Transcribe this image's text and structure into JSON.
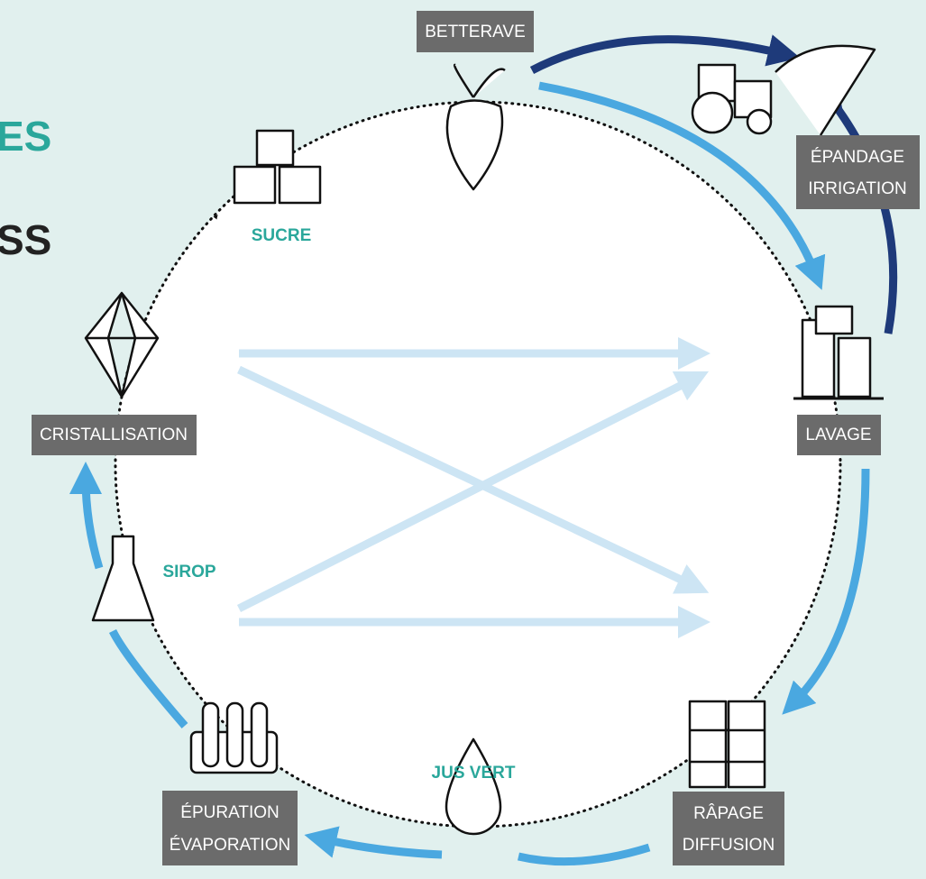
{
  "header": {
    "title_fragment": "ES",
    "subtitle_fragment": "SS"
  },
  "nodes": [
    {
      "label": [
        "BETTERAVE"
      ]
    },
    {
      "label": [
        "ÉPANDAGE",
        "IRRIGATION"
      ]
    },
    {
      "label": [
        "LAVAGE"
      ]
    },
    {
      "label": [
        "RÂPAGE",
        "DIFFUSION"
      ]
    },
    {
      "label": [
        "JUS VERT"
      ]
    },
    {
      "label": [
        "ÉPURATION",
        "ÉVAPORATION"
      ]
    },
    {
      "label": [
        "SIROP"
      ]
    },
    {
      "label": [
        "CRISTALLISATION"
      ]
    },
    {
      "label": [
        "SUCRE"
      ]
    }
  ]
}
